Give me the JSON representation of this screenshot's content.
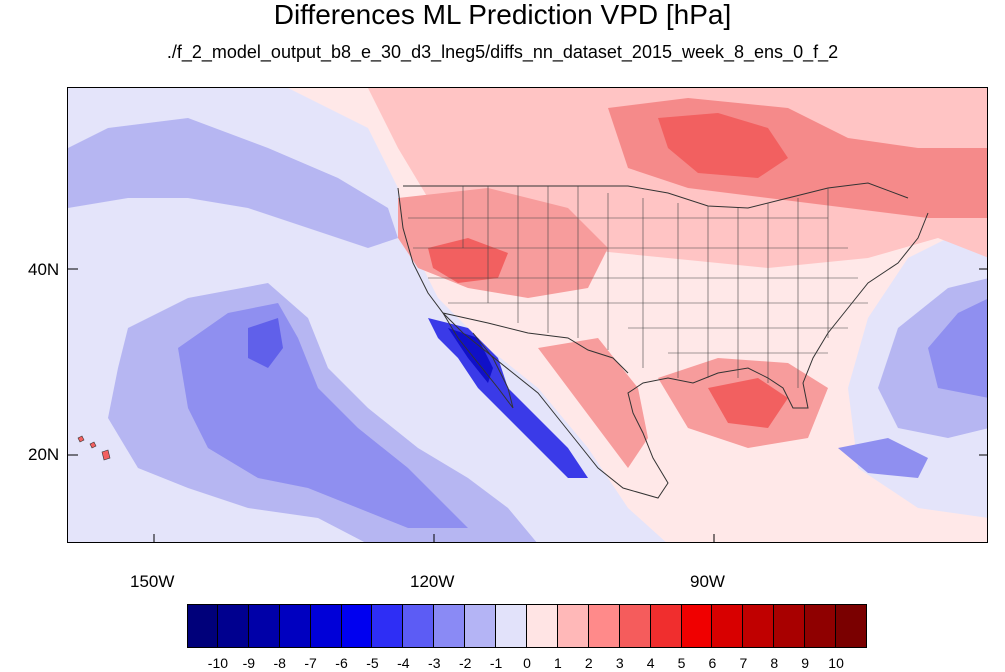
{
  "title": "Differences ML Prediction VPD [hPa]",
  "subtitle": "./f_2_model_output_b8_e_30_d3_lneg5/diffs_nn_dataset_2015_week_8_ens_0_f_2",
  "map": {
    "lat_labels": [
      "40N",
      "20N"
    ],
    "lon_labels": [
      "150W",
      "120W",
      "90W"
    ]
  },
  "colorbar": {
    "labels": [
      "-10",
      "-9",
      "-8",
      "-7",
      "-6",
      "-5",
      "-4",
      "-3",
      "-2",
      "-1",
      "0",
      "1",
      "2",
      "3",
      "4",
      "5",
      "6",
      "7",
      "8",
      "9",
      "10"
    ],
    "colors": [
      "#00007a",
      "#00008f",
      "#0000a8",
      "#0000c0",
      "#0000d8",
      "#0000f0",
      "#2e2ef5",
      "#5c5cf5",
      "#8a8af5",
      "#b4b4f5",
      "#e2e2fa",
      "#ffe4e4",
      "#ffb8b8",
      "#ff8a8a",
      "#f55c5c",
      "#f02e2e",
      "#f00000",
      "#d80000",
      "#c00000",
      "#a80000",
      "#8f0000",
      "#7a0000"
    ]
  }
}
